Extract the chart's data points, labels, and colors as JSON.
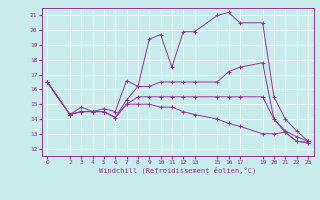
{
  "xlabel": "Windchill (Refroidissement éolien,°C)",
  "background_color": "#c8ecec",
  "line_color": "#993399",
  "xlim": [
    -0.5,
    23.5
  ],
  "ylim": [
    11.5,
    21.5
  ],
  "xticks": [
    0,
    2,
    3,
    4,
    5,
    6,
    7,
    8,
    9,
    10,
    11,
    12,
    13,
    15,
    16,
    17,
    19,
    20,
    21,
    22,
    23
  ],
  "yticks": [
    12,
    13,
    14,
    15,
    16,
    17,
    18,
    19,
    20,
    21
  ],
  "series": [
    [
      0,
      16.5,
      2,
      14.3,
      3,
      14.8,
      4,
      14.5,
      5,
      14.7,
      6,
      14.5,
      7,
      16.6,
      8,
      16.2,
      9,
      19.4,
      10,
      19.7,
      11,
      17.5,
      12,
      19.9,
      13,
      19.9,
      15,
      21.0,
      16,
      21.2,
      17,
      20.5,
      19,
      20.5,
      20,
      15.5,
      21,
      14.0,
      22,
      13.2,
      23,
      12.5
    ],
    [
      0,
      16.5,
      2,
      14.3,
      3,
      14.5,
      4,
      14.5,
      5,
      14.5,
      6,
      14.1,
      7,
      15.3,
      8,
      16.2,
      9,
      16.2,
      10,
      16.5,
      11,
      16.5,
      12,
      16.5,
      13,
      16.5,
      15,
      16.5,
      16,
      17.2,
      17,
      17.5,
      19,
      17.8,
      20,
      14.0,
      21,
      13.2,
      22,
      12.8,
      23,
      12.5
    ],
    [
      0,
      16.5,
      2,
      14.3,
      3,
      14.5,
      4,
      14.5,
      5,
      14.5,
      6,
      14.1,
      7,
      15.0,
      8,
      15.5,
      9,
      15.5,
      10,
      15.5,
      11,
      15.5,
      12,
      15.5,
      13,
      15.5,
      15,
      15.5,
      16,
      15.5,
      17,
      15.5,
      19,
      15.5,
      20,
      14.0,
      21,
      13.1,
      22,
      12.5,
      23,
      12.4
    ],
    [
      0,
      16.5,
      2,
      14.3,
      3,
      14.5,
      4,
      14.5,
      5,
      14.5,
      6,
      14.1,
      7,
      15.0,
      8,
      15.0,
      9,
      15.0,
      10,
      14.8,
      11,
      14.8,
      12,
      14.5,
      13,
      14.3,
      15,
      14.0,
      16,
      13.7,
      17,
      13.5,
      19,
      13.0,
      20,
      13.0,
      21,
      13.1,
      22,
      12.5,
      23,
      12.4
    ]
  ]
}
